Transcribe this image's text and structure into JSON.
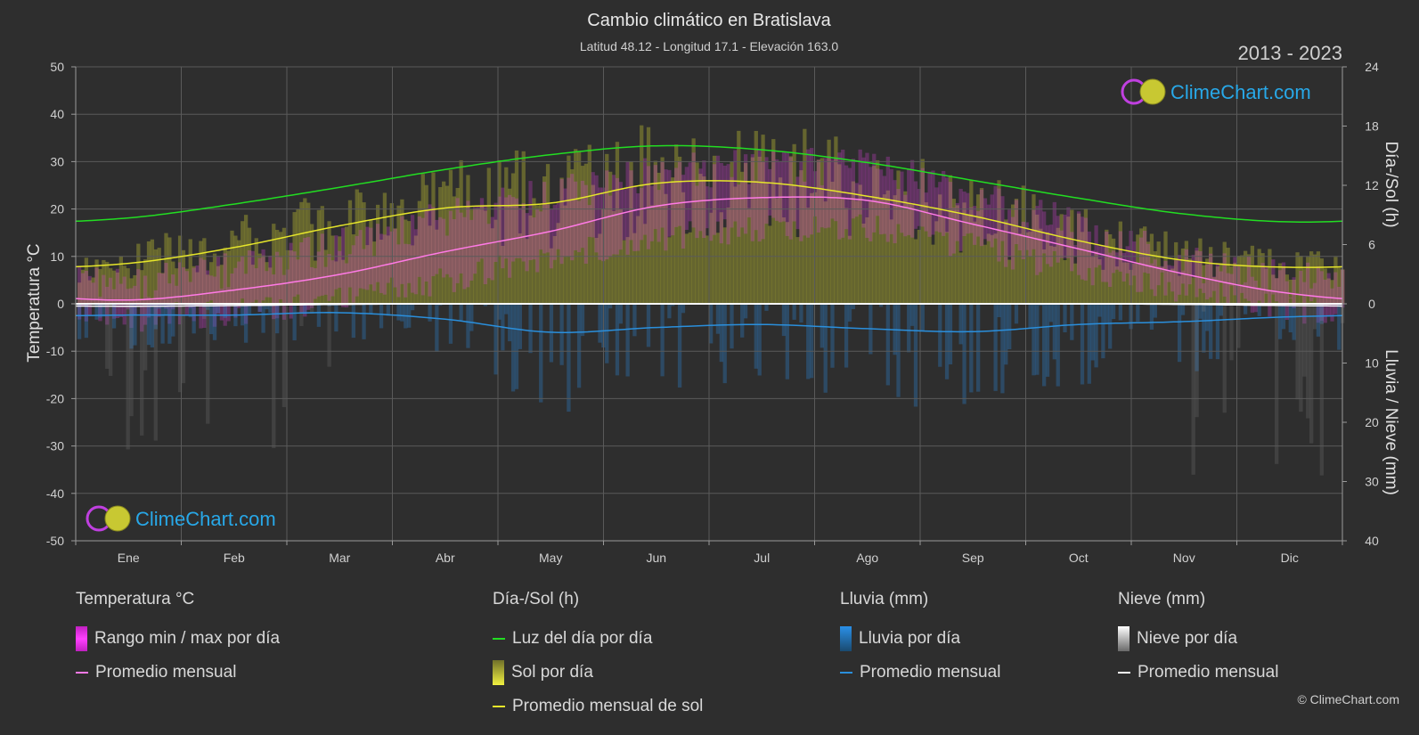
{
  "chart_data": {
    "type": "line",
    "title": "Cambio climático en Bratislava",
    "subtitle": "Latitud 48.12 - Longitud 17.1 - Elevación 163.0",
    "year_range": "2013 - 2023",
    "categories": [
      "Ene",
      "Feb",
      "Mar",
      "Abr",
      "May",
      "Jun",
      "Jul",
      "Ago",
      "Sep",
      "Oct",
      "Nov",
      "Dic"
    ],
    "ylabel_left": "Temperatura °C",
    "ylabel_right_top": "Día-/Sol (h)",
    "ylabel_right_bottom": "Lluvia / Nieve (mm)",
    "ylim_left": [
      -50,
      50
    ],
    "yticks_left": [
      50,
      40,
      30,
      20,
      10,
      0,
      -10,
      -20,
      -30,
      -40,
      -50
    ],
    "yticks_right_top": [
      24,
      18,
      12,
      6,
      0
    ],
    "yticks_right_bottom": [
      10,
      20,
      30,
      40
    ],
    "series": [
      {
        "name": "Luz del día por día",
        "unit": "h",
        "color": "#22dd22",
        "values": [
          8.7,
          10.1,
          11.8,
          13.6,
          15.1,
          16.0,
          15.6,
          14.3,
          12.5,
          10.7,
          9.1,
          8.3
        ]
      },
      {
        "name": "Promedio mensual de sol",
        "unit": "h",
        "color": "#e6e62a",
        "values": [
          4.1,
          5.7,
          7.9,
          9.7,
          10.2,
          12.2,
          12.3,
          10.9,
          8.9,
          6.4,
          4.4,
          3.7
        ]
      },
      {
        "name": "Promedio mensual (temperatura)",
        "unit": "°C",
        "color": "#ff7ae6",
        "values": [
          0.8,
          2.9,
          6.2,
          11.0,
          15.3,
          20.6,
          22.4,
          21.8,
          16.8,
          11.6,
          6.3,
          2.2
        ]
      },
      {
        "name": "Promedio mensual (lluvia)",
        "unit": "mm",
        "color": "#2a8fdc",
        "values": [
          1.9,
          1.9,
          1.5,
          2.6,
          4.8,
          4.0,
          3.5,
          4.2,
          4.7,
          3.5,
          3.0,
          2.2
        ]
      },
      {
        "name": "Promedio mensual (nieve)",
        "unit": "mm",
        "color": "#ffffff",
        "values": [
          0.4,
          0.3,
          0.1,
          0.0,
          0.0,
          0.0,
          0.0,
          0.0,
          0.0,
          0.0,
          0.1,
          0.3
        ]
      }
    ],
    "temp_range_max": [
      4,
      7,
      12,
      18,
      23,
      28,
      29,
      29,
      23,
      16,
      9,
      5
    ],
    "temp_range_min": [
      -3,
      -2,
      1,
      5,
      10,
      14,
      16,
      16,
      12,
      7,
      3,
      -1
    ],
    "grid": true
  },
  "logo": {
    "text": "ClimeChart.com"
  },
  "copyright": "© ClimeChart.com",
  "legend": {
    "temperature": {
      "title": "Temperatura °C",
      "items": [
        "Rango min / max por día",
        "Promedio mensual"
      ]
    },
    "daylight": {
      "title": "Día-/Sol (h)",
      "items": [
        "Luz del día por día",
        "Sol por día",
        "Promedio mensual de sol"
      ]
    },
    "rain": {
      "title": "Lluvia (mm)",
      "items": [
        "Lluvia por día",
        "Promedio mensual"
      ]
    },
    "snow": {
      "title": "Nieve (mm)",
      "items": [
        "Nieve por día",
        "Promedio mensual"
      ]
    }
  },
  "colors": {
    "background": "#2e2e2e",
    "temp_range": "#e040e0",
    "sun_fill": "#a8a830",
    "rain_fill": "#2a7fc8",
    "snow_fill": "#888888"
  }
}
